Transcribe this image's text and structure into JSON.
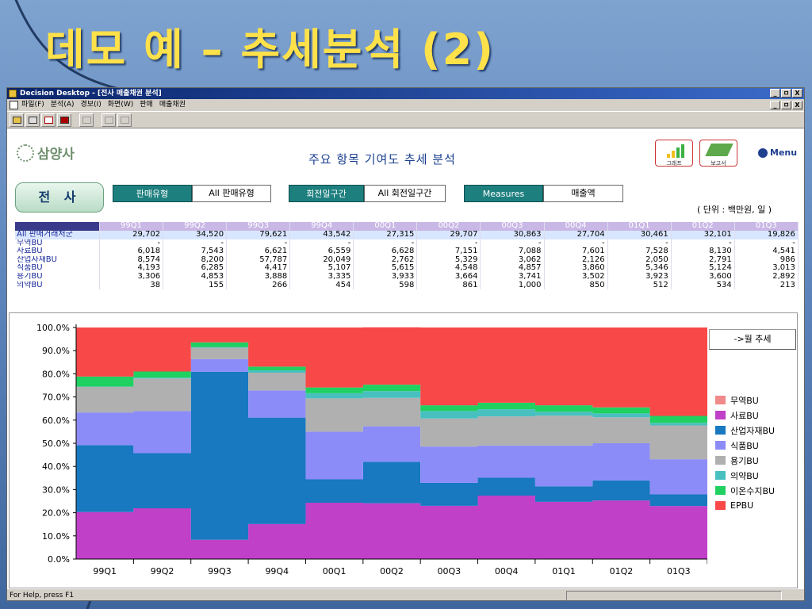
{
  "slide": {
    "title": "데모 예 – 추세분석 (2)"
  },
  "window": {
    "title": "Decision Desktop - [전사 매출채권 분석]",
    "min": "_",
    "max": "ㅁ",
    "close": "X",
    "menu": [
      "파일(F)",
      "분석(A)",
      "경보(I)",
      "화면(W)",
      "판매",
      "매출채권"
    ],
    "status": "For Help, press F1"
  },
  "report": {
    "logo": "삼양사",
    "title": "주요 항목 기여도 추세 분석",
    "graph_label": "그래프",
    "report_label": "보고서",
    "menu_label": "Menu",
    "company": "전 사",
    "filters": [
      {
        "label": "판매유형",
        "value": "All 판매유형"
      },
      {
        "label": "회전일구간",
        "value": "All 회전일구간"
      },
      {
        "label": "Measures",
        "value": "매출액"
      }
    ],
    "unit": "( 단위 : 백만원, 일 )",
    "month_button": "->월 추세"
  },
  "table": {
    "columns": [
      "99Q1",
      "99Q2",
      "99Q3",
      "99Q4",
      "00Q1",
      "00Q2",
      "00Q3",
      "00Q4",
      "01Q1",
      "01Q2",
      "01Q3"
    ],
    "rows": [
      {
        "label": "All 판매거래처군",
        "values": [
          "29,702",
          "34,520",
          "79,621",
          "43,542",
          "27,315",
          "29,707",
          "30,863",
          "27,704",
          "30,461",
          "32,101",
          "19,826"
        ]
      },
      {
        "label": "무역BU",
        "values": [
          "-",
          "-",
          "-",
          "-",
          "-",
          "-",
          "-",
          "-",
          "-",
          "-",
          "-"
        ]
      },
      {
        "label": "사료BU",
        "values": [
          "6,018",
          "7,543",
          "6,621",
          "6,559",
          "6,628",
          "7,151",
          "7,088",
          "7,601",
          "7,528",
          "8,130",
          "4,541"
        ]
      },
      {
        "label": "산업자재BU",
        "values": [
          "8,574",
          "8,200",
          "57,787",
          "20,049",
          "2,762",
          "5,329",
          "3,062",
          "2,126",
          "2,050",
          "2,791",
          "986"
        ]
      },
      {
        "label": "식품BU",
        "values": [
          "4,193",
          "6,285",
          "4,417",
          "5,107",
          "5,615",
          "4,548",
          "4,857",
          "3,860",
          "5,346",
          "5,124",
          "3,013"
        ]
      },
      {
        "label": "용기BU",
        "values": [
          "3,306",
          "4,853",
          "3,888",
          "3,335",
          "3,933",
          "3,664",
          "3,741",
          "3,502",
          "3,923",
          "3,600",
          "2,892"
        ]
      },
      {
        "label": "의약BU",
        "values": [
          "38",
          "155",
          "266",
          "454",
          "598",
          "861",
          "1,000",
          "850",
          "512",
          "534",
          "213"
        ]
      }
    ]
  },
  "chart_data": {
    "type": "area",
    "stacked": true,
    "percent": true,
    "categories": [
      "99Q1",
      "99Q2",
      "99Q3",
      "99Q4",
      "00Q1",
      "00Q2",
      "00Q3",
      "00Q4",
      "01Q1",
      "01Q2",
      "01Q3"
    ],
    "ylim": [
      0,
      100
    ],
    "yticks": [
      "0.0%",
      "10.0%",
      "20.0%",
      "30.0%",
      "40.0%",
      "50.0%",
      "60.0%",
      "70.0%",
      "80.0%",
      "90.0%",
      "100.0%"
    ],
    "legend_position": "right",
    "series": [
      {
        "name": "무역BU",
        "color": "#f08a8a",
        "values": [
          0,
          0,
          0,
          0,
          0,
          0,
          0,
          0,
          0,
          0,
          0
        ]
      },
      {
        "name": "사료BU",
        "color": "#c040c8",
        "values": [
          20.3,
          21.9,
          8.3,
          15.1,
          24.3,
          24.1,
          23.0,
          27.4,
          24.7,
          25.3,
          22.9
        ]
      },
      {
        "name": "산업자재BU",
        "color": "#1878c0",
        "values": [
          28.9,
          23.8,
          72.6,
          46.0,
          10.1,
          17.9,
          9.9,
          7.7,
          6.7,
          8.7,
          5.0
        ]
      },
      {
        "name": "식품BU",
        "color": "#8c8cf8",
        "values": [
          14.1,
          18.2,
          5.5,
          11.7,
          20.6,
          15.3,
          15.7,
          13.9,
          17.6,
          16.0,
          15.2
        ]
      },
      {
        "name": "용기BU",
        "color": "#b0b0b0",
        "values": [
          11.1,
          14.1,
          4.9,
          7.7,
          14.4,
          12.3,
          12.1,
          12.6,
          12.9,
          11.2,
          14.6
        ]
      },
      {
        "name": "의약BU",
        "color": "#48c0c0",
        "values": [
          0.1,
          0.4,
          0.3,
          1.0,
          2.2,
          2.9,
          3.2,
          3.1,
          1.7,
          1.7,
          1.1
        ]
      },
      {
        "name": "이온수지BU",
        "color": "#20d060",
        "values": [
          4.3,
          2.6,
          2.0,
          1.6,
          2.5,
          2.8,
          2.5,
          2.8,
          2.8,
          2.6,
          3.0
        ]
      },
      {
        "name": "EPBU",
        "color": "#f84848",
        "values": [
          21.2,
          19.0,
          6.4,
          16.9,
          25.9,
          24.8,
          33.6,
          32.5,
          33.6,
          34.5,
          38.2
        ]
      }
    ]
  }
}
